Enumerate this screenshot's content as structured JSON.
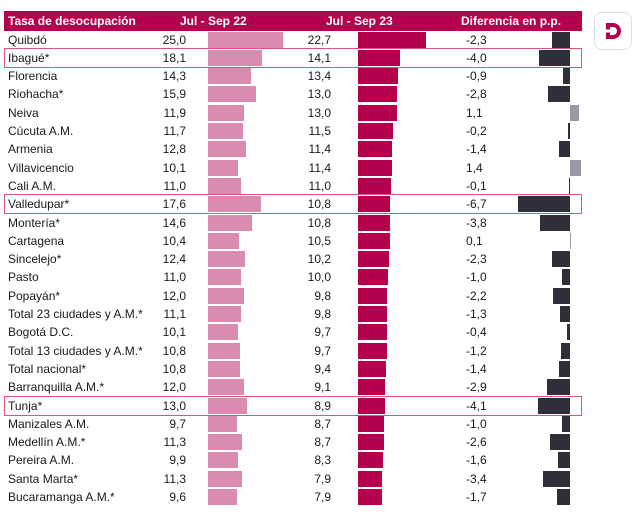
{
  "header": {
    "label_col": "Tasa de desocupación",
    "col1": "Jul - Sep 22",
    "col2": "Jul - Sep 23",
    "col3": "Diferencia en p.p."
  },
  "logo": {
    "icon": "brand-d-logo-icon"
  },
  "colors": {
    "header": "#b5004d",
    "bar_2022": "#d98cb0",
    "bar_2023": "#b5004d",
    "bar_diff": "#2f2f3a",
    "bar_diff_positive": "#9a9aa6",
    "highlight": "#d9577f"
  },
  "chart_data": {
    "type": "table",
    "title": "Tasa de desocupación",
    "columns": [
      "Tasa de desocupación",
      "Jul - Sep 22",
      "Jul - Sep 23",
      "Diferencia en p.p."
    ],
    "categories": [
      "Quibdó",
      "Ibagué*",
      "Florencia",
      "Riohacha*",
      "Neiva",
      "Cúcuta A.M.",
      "Armenia",
      "Villavicencio",
      "Cali A.M.",
      "Valledupar*",
      "Montería*",
      "Cartagena",
      "Sincelejo*",
      "Pasto",
      "Popayán*",
      "Total 23 ciudades y A.M.*",
      "Bogotá D.C.",
      "Total 13 ciudades y A.M.*",
      "Total nacional*",
      "Barranquilla A.M.*",
      "Tunja*",
      "Manizales A.M.",
      "Medellín A.M.*",
      "Pereira A.M.",
      "Santa Marta*",
      "Bucaramanga A.M.*"
    ],
    "series": [
      {
        "name": "Jul - Sep 22",
        "values": [
          "25,0",
          "18,1",
          "14,3",
          "15,9",
          "11,9",
          "11,7",
          "12,8",
          "10,1",
          "11,0",
          "17,6",
          "14,6",
          "10,4",
          "12,4",
          "11,0",
          "12,0",
          "11,1",
          "10,1",
          "10,8",
          "10,8",
          "12,0",
          "13,0",
          "9,7",
          "11,3",
          "9,9",
          "11,3",
          "9,6"
        ]
      },
      {
        "name": "Jul - Sep 23",
        "values": [
          "22,7",
          "14,1",
          "13,4",
          "13,0",
          "13,0",
          "11,5",
          "11,4",
          "11,4",
          "11,0",
          "10,8",
          "10,8",
          "10,5",
          "10,2",
          "10,0",
          "9,8",
          "9,8",
          "9,7",
          "9,7",
          "9,4",
          "9,1",
          "8,9",
          "8,7",
          "8,7",
          "8,3",
          "7,9",
          "7,9"
        ]
      },
      {
        "name": "Diferencia en p.p.",
        "values": [
          "-2,3",
          "-4,0",
          "-0,9",
          "-2,8",
          "1,1",
          "-0,2",
          "-1,4",
          "1,4",
          "-0,1",
          "-6,7",
          "-3,8",
          "0,1",
          "-2,3",
          "-1,0",
          "-2,2",
          "-1,3",
          "-0,4",
          "-1,2",
          "-1,4",
          "-2,9",
          "-4,1",
          "-1,0",
          "-2,6",
          "-1,6",
          "-3,4",
          "-1,7"
        ]
      }
    ],
    "highlighted": [
      "Ibagué*",
      "Valledupar*",
      "Tunja*"
    ]
  }
}
